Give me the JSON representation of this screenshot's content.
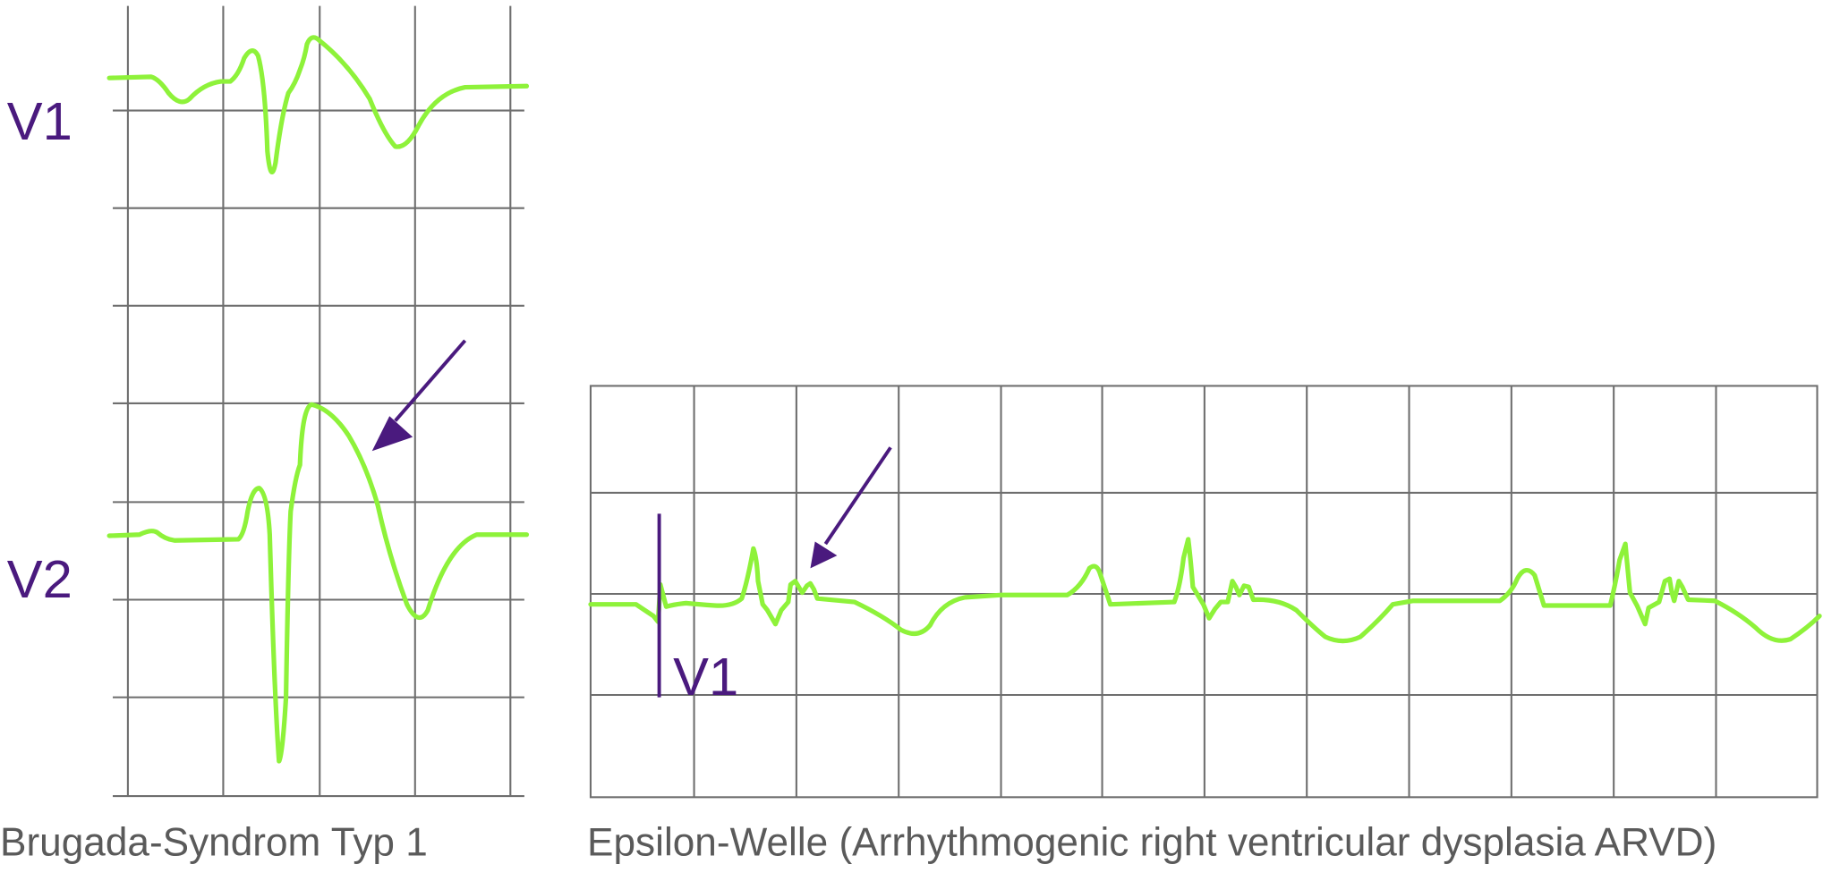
{
  "brugada": {
    "leads": [
      "V1",
      "V2"
    ],
    "caption": "Brugada-Syndrom Typ 1"
  },
  "epsilon": {
    "lead": "V1",
    "caption": "Epsilon-Welle (Arrhythmogenic right ventricular dysplasia ARVD)"
  }
}
